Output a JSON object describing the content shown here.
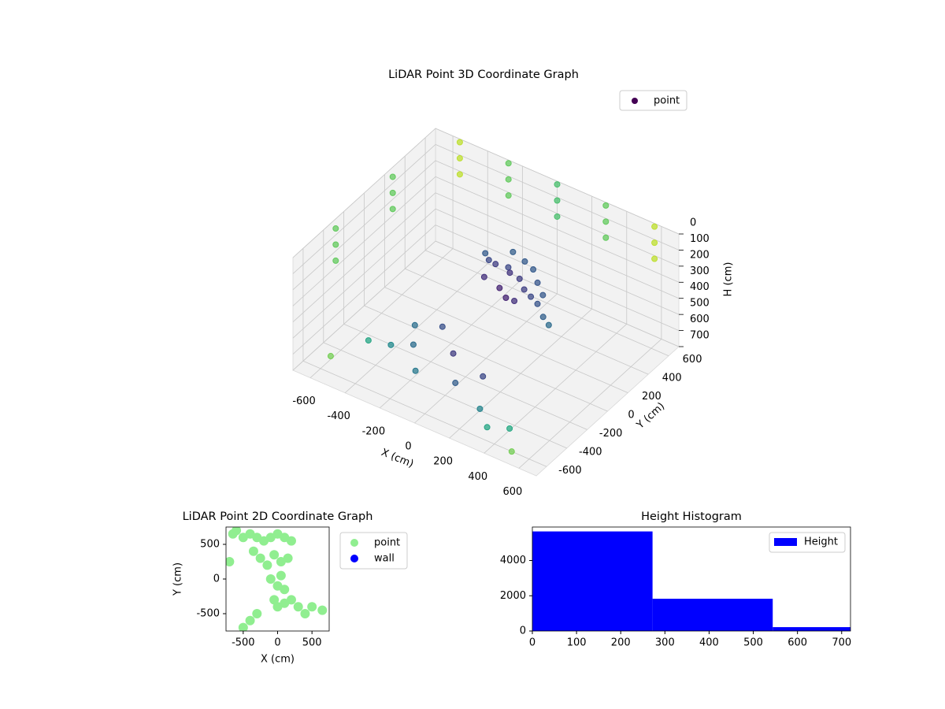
{
  "chart_data": [
    {
      "type": "scatter3d",
      "title": "LiDAR Point 3D Coordinate Graph",
      "x_label": "X (cm)",
      "y_label": "Y (cm)",
      "z_label": "H (cm)",
      "xlim": [
        -700,
        700
      ],
      "ylim": [
        -700,
        700
      ],
      "zlim": [
        700,
        0
      ],
      "xticks": [
        -600,
        -400,
        -200,
        0,
        200,
        400,
        600
      ],
      "yticks": [
        -600,
        -400,
        -200,
        0,
        200,
        400,
        600
      ],
      "zticks": [
        0,
        100,
        200,
        300,
        400,
        500,
        600,
        700
      ],
      "colormap": "viridis",
      "legend": "upper right",
      "series": [
        {
          "name": "point",
          "color": "#440154",
          "x": [
            -560,
            -560,
            -560,
            -280,
            -280,
            -280,
            0,
            0,
            0,
            280,
            280,
            280,
            560,
            560,
            560,
            -700,
            -700,
            -700,
            -700,
            -700,
            -700,
            -100,
            -50,
            0,
            50,
            100,
            150,
            200,
            250,
            -150,
            -80,
            20,
            80,
            140,
            300,
            350,
            -20,
            60,
            120,
            180,
            240,
            -500,
            -400,
            -300,
            -200,
            -100,
            0,
            100,
            200,
            -350,
            -250,
            300,
            400,
            500,
            -600
          ],
          "y": [
            700,
            700,
            700,
            700,
            700,
            700,
            700,
            700,
            700,
            700,
            700,
            700,
            700,
            700,
            700,
            -280,
            -280,
            -280,
            280,
            280,
            280,
            200,
            180,
            220,
            150,
            160,
            120,
            100,
            80,
            250,
            120,
            100,
            60,
            40,
            50,
            20,
            300,
            280,
            260,
            200,
            150,
            -300,
            -250,
            -200,
            -350,
            -150,
            -300,
            -200,
            -400,
            -100,
            0,
            -500,
            -450,
            -600,
            -500
          ],
          "z": [
            20,
            120,
            220,
            20,
            120,
            220,
            20,
            120,
            220,
            20,
            120,
            220,
            20,
            120,
            220,
            60,
            160,
            260,
            60,
            160,
            260,
            250,
            240,
            260,
            230,
            250,
            270,
            280,
            290,
            260,
            300,
            310,
            320,
            300,
            330,
            340,
            220,
            230,
            240,
            260,
            280,
            650,
            660,
            640,
            670,
            630,
            680,
            650,
            690,
            600,
            620,
            700,
            690,
            700,
            680
          ]
        }
      ]
    },
    {
      "type": "scatter",
      "title": "LiDAR Point 2D Coordinate Graph",
      "x_label": "X (cm)",
      "y_label": "Y (cm)",
      "xlim": [
        -750,
        750
      ],
      "ylim": [
        -750,
        750
      ],
      "xticks": [
        -500,
        0,
        500
      ],
      "yticks": [
        -500,
        0,
        500
      ],
      "legend": "outside right",
      "series": [
        {
          "name": "point",
          "color": "#90ee90",
          "x": [
            -650,
            -500,
            -400,
            -300,
            -200,
            -100,
            0,
            100,
            200,
            -350,
            -250,
            -150,
            -50,
            50,
            150,
            -100,
            0,
            50,
            100,
            -50,
            0,
            100,
            200,
            300,
            -300,
            -400,
            -500,
            400,
            500,
            650,
            -700,
            -600
          ],
          "y": [
            650,
            600,
            650,
            600,
            550,
            600,
            650,
            600,
            550,
            400,
            300,
            200,
            350,
            250,
            300,
            0,
            -100,
            50,
            -150,
            -300,
            -400,
            -350,
            -300,
            -400,
            -500,
            -600,
            -700,
            -500,
            -400,
            -450,
            250,
            700
          ]
        },
        {
          "name": "wall",
          "color": "#0000ff",
          "x": [],
          "y": []
        }
      ]
    },
    {
      "type": "histogram",
      "title": "Height Histogram",
      "bins": [
        0,
        272,
        544,
        816
      ],
      "counts": [
        5650,
        1830,
        220
      ],
      "name": "Height",
      "color": "#0000ff",
      "xlim": [
        0,
        720
      ],
      "ylim": [
        0,
        5900
      ],
      "xticks": [
        0,
        100,
        200,
        300,
        400,
        500,
        600,
        700
      ],
      "yticks": [
        0,
        2000,
        4000
      ],
      "legend": "upper right"
    }
  ]
}
